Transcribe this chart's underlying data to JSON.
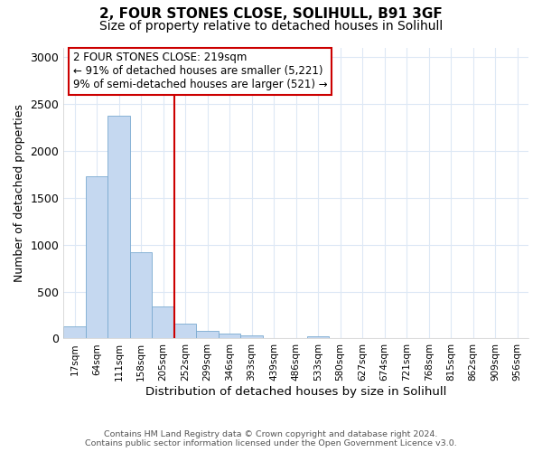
{
  "title_line1": "2, FOUR STONES CLOSE, SOLIHULL, B91 3GF",
  "title_line2": "Size of property relative to detached houses in Solihull",
  "xlabel": "Distribution of detached houses by size in Solihull",
  "ylabel": "Number of detached properties",
  "footer_line1": "Contains HM Land Registry data © Crown copyright and database right 2024.",
  "footer_line2": "Contains public sector information licensed under the Open Government Licence v3.0.",
  "categories": [
    "17sqm",
    "64sqm",
    "111sqm",
    "158sqm",
    "205sqm",
    "252sqm",
    "299sqm",
    "346sqm",
    "393sqm",
    "439sqm",
    "486sqm",
    "533sqm",
    "580sqm",
    "627sqm",
    "674sqm",
    "721sqm",
    "768sqm",
    "815sqm",
    "862sqm",
    "909sqm",
    "956sqm"
  ],
  "values": [
    130,
    1730,
    2370,
    920,
    345,
    155,
    85,
    50,
    35,
    0,
    0,
    25,
    0,
    0,
    0,
    0,
    0,
    0,
    0,
    0,
    0
  ],
  "bar_color": "#c5d8f0",
  "bar_edge_color": "#7aaad0",
  "vline_color": "#cc0000",
  "annotation_title": "2 FOUR STONES CLOSE: 219sqm",
  "annotation_line2": "← 91% of detached houses are smaller (5,221)",
  "annotation_line3": "9% of semi-detached houses are larger (521) →",
  "annotation_box_color": "#cc0000",
  "ylim": [
    0,
    3100
  ],
  "yticks": [
    0,
    500,
    1000,
    1500,
    2000,
    2500,
    3000
  ],
  "background_color": "#ffffff",
  "grid_color": "#dde8f5",
  "title_fontsize": 11,
  "subtitle_fontsize": 10
}
